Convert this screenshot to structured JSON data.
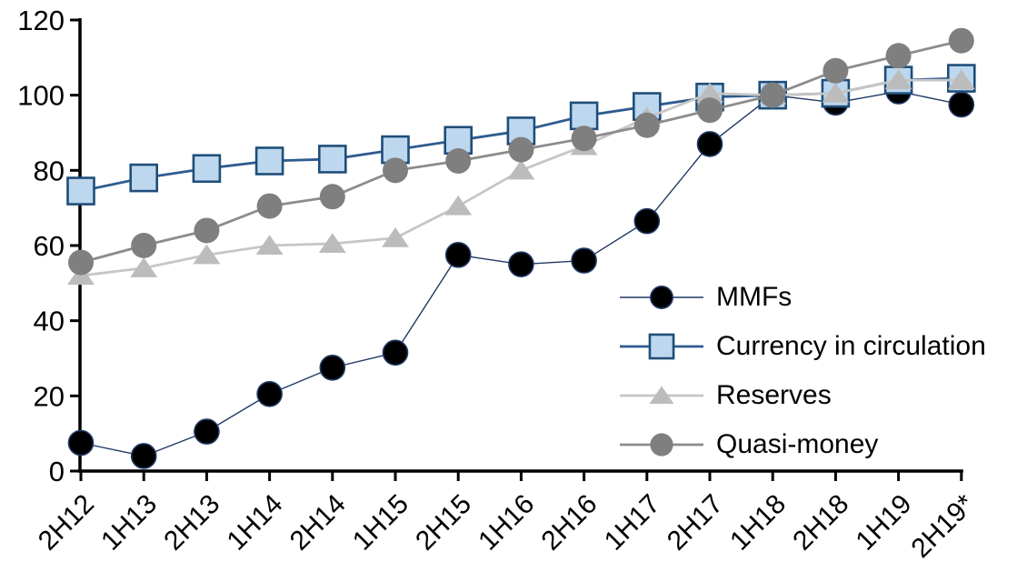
{
  "chart_data": {
    "type": "line",
    "title": "",
    "xlabel": "",
    "ylabel": "",
    "grid": false,
    "legend_position": "inside-right",
    "y_axis": {
      "min": 0,
      "max": 120,
      "step": 20,
      "tick_labels": [
        "0",
        "20",
        "40",
        "60",
        "80",
        "100",
        "120"
      ]
    },
    "x_axis": {
      "categories": [
        "2H12",
        "1H13",
        "2H13",
        "1H14",
        "2H14",
        "1H15",
        "2H15",
        "1H16",
        "2H16",
        "1H17",
        "2H17",
        "1H18",
        "2H18",
        "1H19",
        "2H19*"
      ],
      "label_rotation_deg": -45
    },
    "series": [
      {
        "name": "MMFs",
        "marker": "circle",
        "marker_fill": "#000000",
        "marker_stroke": "#203864",
        "marker_size": 13.5,
        "line_color": "#203864",
        "line_width": 1.4,
        "values": [
          7.5,
          4,
          10.5,
          20.5,
          27.5,
          31.5,
          57.5,
          55,
          56,
          66.5,
          87,
          100,
          98,
          101,
          97.5
        ]
      },
      {
        "name": "Currency in circulation",
        "marker": "square",
        "marker_fill": "#bdd7ee",
        "marker_stroke": "#1f4e79",
        "marker_size": 14.5,
        "line_color": "#2e5b8f",
        "line_width": 2.8,
        "values": [
          74.5,
          78,
          80.5,
          82.5,
          83,
          85.5,
          88,
          90.5,
          94.5,
          97,
          99.5,
          100,
          100.5,
          104,
          104.5
        ]
      },
      {
        "name": "Reserves",
        "marker": "triangle",
        "marker_fill": "#bcbcbc",
        "marker_stroke": "none",
        "marker_size": 15,
        "line_color": "#c6c6c6",
        "line_width": 2.8,
        "values": [
          52,
          54,
          57.5,
          60,
          60.5,
          62,
          70.5,
          80,
          86.5,
          94,
          100.5,
          100,
          100.5,
          104,
          104
        ]
      },
      {
        "name": "Quasi-money",
        "marker": "circle",
        "marker_fill": "#7f7f7f",
        "marker_stroke": "none",
        "marker_size": 14,
        "line_color": "#8c8c8c",
        "line_width": 2.8,
        "values": [
          55.5,
          60,
          64,
          70.5,
          73,
          80,
          82.5,
          85.5,
          88.5,
          92,
          96,
          100,
          106.5,
          110.5,
          114.5
        ]
      }
    ]
  }
}
